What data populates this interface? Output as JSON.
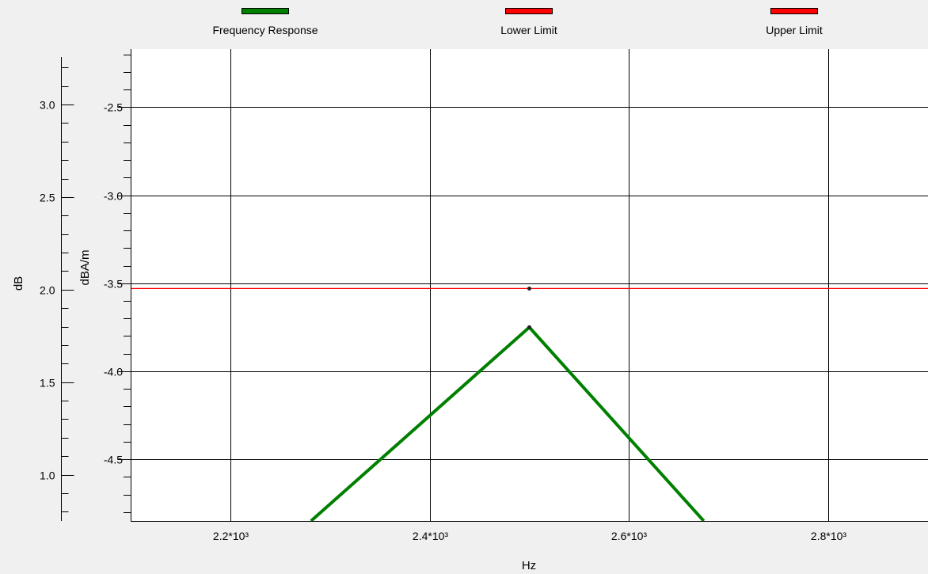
{
  "legend": [
    {
      "label": "Frequency Response",
      "color": "#008000"
    },
    {
      "label": "Lower Limit",
      "color": "#ff0000"
    },
    {
      "label": "Upper Limit",
      "color": "#ff0000"
    }
  ],
  "chart_data": {
    "type": "line",
    "xlabel": "Hz",
    "ylabel_left": "dB",
    "ylabel_right": "dBA/m",
    "xlim": [
      2100,
      2900
    ],
    "ylim_right": [
      -4.85,
      -2.17
    ],
    "ylim_left": [
      0.75,
      3.3
    ],
    "x_ticks": [
      {
        "value": 2200,
        "label": "2.2*10³"
      },
      {
        "value": 2400,
        "label": "2.4*10³"
      },
      {
        "value": 2600,
        "label": "2.6*10³"
      },
      {
        "value": 2800,
        "label": "2.8*10³"
      }
    ],
    "y_ticks_right": [
      {
        "value": -2.5,
        "label": "-2.5"
      },
      {
        "value": -3.0,
        "label": "-3.0"
      },
      {
        "value": -3.5,
        "label": "-3.5"
      },
      {
        "value": -4.0,
        "label": "-4.0"
      },
      {
        "value": -4.5,
        "label": "-4.5"
      }
    ],
    "y_ticks_left": [
      {
        "value": 3.0,
        "label": "3.0"
      },
      {
        "value": 2.5,
        "label": "2.5"
      },
      {
        "value": 2.0,
        "label": "2.0"
      },
      {
        "value": 1.5,
        "label": "1.5"
      },
      {
        "value": 1.0,
        "label": "1.0"
      }
    ],
    "grid": true,
    "series": [
      {
        "name": "Frequency Response",
        "color": "#008000",
        "x": [
          2281,
          2500,
          2675
        ],
        "y": [
          -4.85,
          -3.75,
          -4.85
        ]
      },
      {
        "name": "Lower Limit",
        "color": "#ff0000",
        "x": [
          2100,
          2900
        ],
        "y": [
          -3.53,
          -3.53
        ]
      }
    ],
    "markers": [
      {
        "x": 2500,
        "y": -3.53
      },
      {
        "x": 2500,
        "y": -3.75
      }
    ]
  }
}
